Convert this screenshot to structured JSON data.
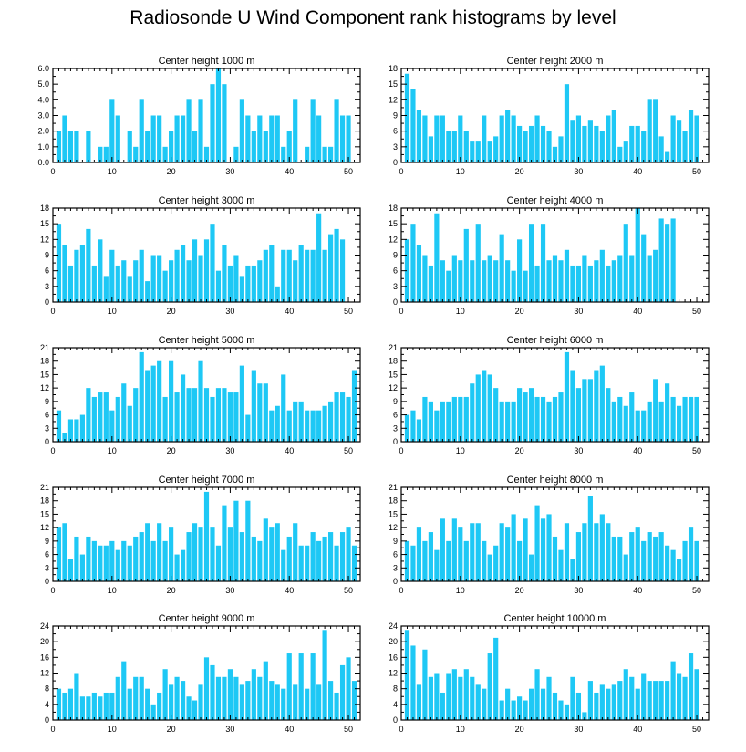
{
  "page_title": "Radiosonde U Wind Component rank histograms by level",
  "colors": {
    "bar": "#1ec8f5",
    "axis": "#000000",
    "background": "#ffffff"
  },
  "chart_data": [
    {
      "type": "bar",
      "title": "Center height 1000 m",
      "xlabel": "",
      "ylabel": "",
      "xlim": [
        0,
        52
      ],
      "ylim": [
        0,
        6
      ],
      "xticks": [
        0,
        10,
        20,
        30,
        40,
        50
      ],
      "yticks": [
        0,
        1,
        2,
        3,
        4,
        5,
        6
      ],
      "ytick_labels": [
        "0.0",
        "1.0",
        "2.0",
        "3.0",
        "4.0",
        "5.0",
        "6.0"
      ],
      "x": [
        1,
        2,
        3,
        4,
        5,
        6,
        7,
        8,
        9,
        10,
        11,
        12,
        13,
        14,
        15,
        16,
        17,
        18,
        19,
        20,
        21,
        22,
        23,
        24,
        25,
        26,
        27,
        28,
        29,
        30,
        31,
        32,
        33,
        34,
        35,
        36,
        37,
        38,
        39,
        40,
        41,
        42,
        43,
        44,
        45,
        46,
        47,
        48,
        49,
        50,
        51
      ],
      "values": [
        2,
        3,
        2,
        2,
        0,
        2,
        0,
        1,
        1,
        4,
        3,
        0,
        2,
        1,
        4,
        2,
        3,
        3,
        1,
        2,
        3,
        3,
        4,
        2,
        4,
        1,
        5,
        6,
        5,
        0,
        1,
        4,
        3,
        2,
        3,
        2,
        3,
        3,
        1,
        2,
        4,
        0,
        1,
        4,
        3,
        1,
        1,
        4,
        3,
        3,
        0
      ]
    },
    {
      "type": "bar",
      "title": "Center height 2000 m",
      "xlabel": "",
      "ylabel": "",
      "xlim": [
        0,
        52
      ],
      "ylim": [
        0,
        18
      ],
      "xticks": [
        0,
        10,
        20,
        30,
        40,
        50
      ],
      "yticks": [
        0,
        3,
        6,
        9,
        12,
        15,
        18
      ],
      "ytick_labels": [
        "0",
        "3",
        "6",
        "9",
        "12",
        "15",
        "18"
      ],
      "x": [
        1,
        2,
        3,
        4,
        5,
        6,
        7,
        8,
        9,
        10,
        11,
        12,
        13,
        14,
        15,
        16,
        17,
        18,
        19,
        20,
        21,
        22,
        23,
        24,
        25,
        26,
        27,
        28,
        29,
        30,
        31,
        32,
        33,
        34,
        35,
        36,
        37,
        38,
        39,
        40,
        41,
        42,
        43,
        44,
        45,
        46,
        47,
        48,
        49,
        50,
        51
      ],
      "values": [
        17,
        14,
        10,
        9,
        5,
        9,
        9,
        6,
        6,
        9,
        6,
        4,
        4,
        9,
        4,
        5,
        9,
        10,
        9,
        7,
        6,
        7,
        9,
        7,
        6,
        3,
        5,
        15,
        8,
        9,
        7,
        8,
        7,
        6,
        9,
        10,
        3,
        4,
        7,
        7,
        6,
        12,
        12,
        5,
        2,
        9,
        8,
        6,
        10,
        9,
        0
      ]
    },
    {
      "type": "bar",
      "title": "Center height 3000 m",
      "xlabel": "",
      "ylabel": "",
      "xlim": [
        0,
        52
      ],
      "ylim": [
        0,
        18
      ],
      "xticks": [
        0,
        10,
        20,
        30,
        40,
        50
      ],
      "yticks": [
        0,
        3,
        6,
        9,
        12,
        15,
        18
      ],
      "ytick_labels": [
        "0",
        "3",
        "6",
        "9",
        "12",
        "15",
        "18"
      ],
      "x": [
        1,
        2,
        3,
        4,
        5,
        6,
        7,
        8,
        9,
        10,
        11,
        12,
        13,
        14,
        15,
        16,
        17,
        18,
        19,
        20,
        21,
        22,
        23,
        24,
        25,
        26,
        27,
        28,
        29,
        30,
        31,
        32,
        33,
        34,
        35,
        36,
        37,
        38,
        39,
        40,
        41,
        42,
        43,
        44,
        45,
        46,
        47,
        48,
        49,
        50,
        51
      ],
      "values": [
        15,
        11,
        7,
        10,
        11,
        14,
        7,
        12,
        5,
        10,
        7,
        8,
        5,
        8,
        10,
        4,
        9,
        9,
        6,
        8,
        10,
        11,
        8,
        12,
        9,
        12,
        15,
        6,
        11,
        7,
        9,
        5,
        7,
        7,
        8,
        10,
        11,
        3,
        10,
        10,
        8,
        11,
        10,
        10,
        17,
        10,
        13,
        14,
        12,
        0,
        0
      ]
    },
    {
      "type": "bar",
      "title": "Center height 4000 m",
      "xlabel": "",
      "ylabel": "",
      "xlim": [
        0,
        52
      ],
      "ylim": [
        0,
        18
      ],
      "xticks": [
        0,
        10,
        20,
        30,
        40,
        50
      ],
      "yticks": [
        0,
        3,
        6,
        9,
        12,
        15,
        18
      ],
      "ytick_labels": [
        "0",
        "3",
        "6",
        "9",
        "12",
        "15",
        "18"
      ],
      "x": [
        1,
        2,
        3,
        4,
        5,
        6,
        7,
        8,
        9,
        10,
        11,
        12,
        13,
        14,
        15,
        16,
        17,
        18,
        19,
        20,
        21,
        22,
        23,
        24,
        25,
        26,
        27,
        28,
        29,
        30,
        31,
        32,
        33,
        34,
        35,
        36,
        37,
        38,
        39,
        40,
        41,
        42,
        43,
        44,
        45,
        46,
        47,
        48,
        49,
        50,
        51
      ],
      "values": [
        12,
        15,
        11,
        9,
        7,
        17,
        8,
        6,
        9,
        8,
        14,
        8,
        15,
        8,
        9,
        8,
        13,
        8,
        6,
        12,
        6,
        15,
        7,
        15,
        8,
        9,
        8,
        10,
        7,
        7,
        9,
        7,
        8,
        10,
        7,
        8,
        9,
        15,
        9,
        18,
        13,
        9,
        10,
        16,
        15,
        16,
        0,
        0,
        0,
        0,
        0
      ]
    },
    {
      "type": "bar",
      "title": "Center height 5000 m",
      "xlabel": "",
      "ylabel": "",
      "xlim": [
        0,
        52
      ],
      "ylim": [
        0,
        21
      ],
      "xticks": [
        0,
        10,
        20,
        30,
        40,
        50
      ],
      "yticks": [
        0,
        3,
        6,
        9,
        12,
        15,
        18,
        21
      ],
      "ytick_labels": [
        "0",
        "3",
        "6",
        "9",
        "12",
        "15",
        "18",
        "21"
      ],
      "x": [
        1,
        2,
        3,
        4,
        5,
        6,
        7,
        8,
        9,
        10,
        11,
        12,
        13,
        14,
        15,
        16,
        17,
        18,
        19,
        20,
        21,
        22,
        23,
        24,
        25,
        26,
        27,
        28,
        29,
        30,
        31,
        32,
        33,
        34,
        35,
        36,
        37,
        38,
        39,
        40,
        41,
        42,
        43,
        44,
        45,
        46,
        47,
        48,
        49,
        50,
        51
      ],
      "values": [
        7,
        2,
        5,
        5,
        6,
        12,
        10,
        11,
        11,
        7,
        10,
        13,
        8,
        12,
        20,
        16,
        17,
        18,
        10,
        18,
        11,
        15,
        12,
        12,
        18,
        12,
        10,
        12,
        12,
        11,
        11,
        17,
        6,
        16,
        13,
        13,
        7,
        8,
        15,
        7,
        9,
        9,
        7,
        7,
        7,
        8,
        9,
        11,
        11,
        10,
        16
      ]
    },
    {
      "type": "bar",
      "title": "Center height 6000 m",
      "xlabel": "",
      "ylabel": "",
      "xlim": [
        0,
        52
      ],
      "ylim": [
        0,
        21
      ],
      "xticks": [
        0,
        10,
        20,
        30,
        40,
        50
      ],
      "yticks": [
        0,
        3,
        6,
        9,
        12,
        15,
        18,
        21
      ],
      "ytick_labels": [
        "0",
        "3",
        "6",
        "9",
        "12",
        "15",
        "18",
        "21"
      ],
      "x": [
        1,
        2,
        3,
        4,
        5,
        6,
        7,
        8,
        9,
        10,
        11,
        12,
        13,
        14,
        15,
        16,
        17,
        18,
        19,
        20,
        21,
        22,
        23,
        24,
        25,
        26,
        27,
        28,
        29,
        30,
        31,
        32,
        33,
        34,
        35,
        36,
        37,
        38,
        39,
        40,
        41,
        42,
        43,
        44,
        45,
        46,
        47,
        48,
        49,
        50,
        51
      ],
      "values": [
        6,
        7,
        5,
        10,
        9,
        7,
        9,
        9,
        10,
        10,
        10,
        13,
        15,
        16,
        15,
        12,
        9,
        9,
        9,
        12,
        11,
        12,
        10,
        10,
        9,
        10,
        11,
        20,
        16,
        12,
        14,
        14,
        16,
        17,
        12,
        9,
        10,
        8,
        11,
        7,
        7,
        9,
        14,
        9,
        13,
        10,
        8,
        10,
        10,
        10,
        0
      ]
    },
    {
      "type": "bar",
      "title": "Center height 7000 m",
      "xlabel": "",
      "ylabel": "",
      "xlim": [
        0,
        52
      ],
      "ylim": [
        0,
        21
      ],
      "xticks": [
        0,
        10,
        20,
        30,
        40,
        50
      ],
      "yticks": [
        0,
        3,
        6,
        9,
        12,
        15,
        18,
        21
      ],
      "ytick_labels": [
        "0",
        "3",
        "6",
        "9",
        "12",
        "15",
        "18",
        "21"
      ],
      "x": [
        1,
        2,
        3,
        4,
        5,
        6,
        7,
        8,
        9,
        10,
        11,
        12,
        13,
        14,
        15,
        16,
        17,
        18,
        19,
        20,
        21,
        22,
        23,
        24,
        25,
        26,
        27,
        28,
        29,
        30,
        31,
        32,
        33,
        34,
        35,
        36,
        37,
        38,
        39,
        40,
        41,
        42,
        43,
        44,
        45,
        46,
        47,
        48,
        49,
        50,
        51
      ],
      "values": [
        12,
        13,
        5,
        10,
        6,
        10,
        9,
        8,
        8,
        9,
        7,
        9,
        8,
        10,
        11,
        13,
        9,
        13,
        9,
        12,
        6,
        7,
        11,
        13,
        12,
        20,
        12,
        8,
        17,
        12,
        18,
        11,
        18,
        10,
        9,
        14,
        12,
        13,
        7,
        10,
        13,
        8,
        8,
        11,
        9,
        10,
        11,
        8,
        11,
        12,
        8
      ]
    },
    {
      "type": "bar",
      "title": "Center height 8000 m",
      "xlabel": "",
      "ylabel": "",
      "xlim": [
        0,
        52
      ],
      "ylim": [
        0,
        21
      ],
      "xticks": [
        0,
        10,
        20,
        30,
        40,
        50
      ],
      "yticks": [
        0,
        3,
        6,
        9,
        12,
        15,
        18,
        21
      ],
      "ytick_labels": [
        "0",
        "3",
        "6",
        "9",
        "12",
        "15",
        "18",
        "21"
      ],
      "x": [
        1,
        2,
        3,
        4,
        5,
        6,
        7,
        8,
        9,
        10,
        11,
        12,
        13,
        14,
        15,
        16,
        17,
        18,
        19,
        20,
        21,
        22,
        23,
        24,
        25,
        26,
        27,
        28,
        29,
        30,
        31,
        32,
        33,
        34,
        35,
        36,
        37,
        38,
        39,
        40,
        41,
        42,
        43,
        44,
        45,
        46,
        47,
        48,
        49,
        50,
        51
      ],
      "values": [
        9,
        8,
        12,
        9,
        11,
        7,
        14,
        9,
        14,
        12,
        9,
        13,
        13,
        9,
        6,
        8,
        13,
        12,
        15,
        9,
        14,
        6,
        17,
        14,
        15,
        10,
        7,
        13,
        5,
        11,
        13,
        19,
        13,
        15,
        13,
        10,
        10,
        6,
        11,
        12,
        9,
        11,
        10,
        11,
        8,
        7,
        5,
        9,
        12,
        9,
        0
      ]
    },
    {
      "type": "bar",
      "title": "Center height 9000 m",
      "xlabel": "",
      "ylabel": "",
      "xlim": [
        0,
        52
      ],
      "ylim": [
        0,
        24
      ],
      "xticks": [
        0,
        10,
        20,
        30,
        40,
        50
      ],
      "yticks": [
        0,
        4,
        8,
        12,
        16,
        20,
        24
      ],
      "ytick_labels": [
        "0",
        "4",
        "8",
        "12",
        "16",
        "20",
        "24"
      ],
      "x": [
        1,
        2,
        3,
        4,
        5,
        6,
        7,
        8,
        9,
        10,
        11,
        12,
        13,
        14,
        15,
        16,
        17,
        18,
        19,
        20,
        21,
        22,
        23,
        24,
        25,
        26,
        27,
        28,
        29,
        30,
        31,
        32,
        33,
        34,
        35,
        36,
        37,
        38,
        39,
        40,
        41,
        42,
        43,
        44,
        45,
        46,
        47,
        48,
        49,
        50,
        51
      ],
      "values": [
        8,
        7,
        8,
        12,
        6,
        6,
        7,
        6,
        7,
        7,
        11,
        15,
        8,
        11,
        11,
        8,
        4,
        7,
        13,
        9,
        11,
        10,
        6,
        5,
        9,
        16,
        14,
        11,
        11,
        13,
        11,
        9,
        10,
        13,
        11,
        15,
        10,
        9,
        8,
        17,
        9,
        17,
        8,
        17,
        9,
        23,
        10,
        7,
        14,
        16,
        10
      ]
    },
    {
      "type": "bar",
      "title": "Center height 10000 m",
      "xlabel": "",
      "ylabel": "",
      "xlim": [
        0,
        52
      ],
      "ylim": [
        0,
        24
      ],
      "xticks": [
        0,
        10,
        20,
        30,
        40,
        50
      ],
      "yticks": [
        0,
        4,
        8,
        12,
        16,
        20,
        24
      ],
      "ytick_labels": [
        "0",
        "4",
        "8",
        "12",
        "16",
        "20",
        "24"
      ],
      "x": [
        1,
        2,
        3,
        4,
        5,
        6,
        7,
        8,
        9,
        10,
        11,
        12,
        13,
        14,
        15,
        16,
        17,
        18,
        19,
        20,
        21,
        22,
        23,
        24,
        25,
        26,
        27,
        28,
        29,
        30,
        31,
        32,
        33,
        34,
        35,
        36,
        37,
        38,
        39,
        40,
        41,
        42,
        43,
        44,
        45,
        46,
        47,
        48,
        49,
        50,
        51
      ],
      "values": [
        23,
        19,
        9,
        18,
        11,
        12,
        7,
        12,
        13,
        11,
        13,
        11,
        9,
        8,
        17,
        21,
        5,
        8,
        5,
        6,
        5,
        8,
        13,
        8,
        11,
        7,
        5,
        4,
        11,
        7,
        2,
        10,
        7,
        9,
        8,
        9,
        10,
        13,
        11,
        8,
        12,
        10,
        10,
        10,
        10,
        15,
        12,
        11,
        17,
        13,
        0
      ]
    }
  ]
}
